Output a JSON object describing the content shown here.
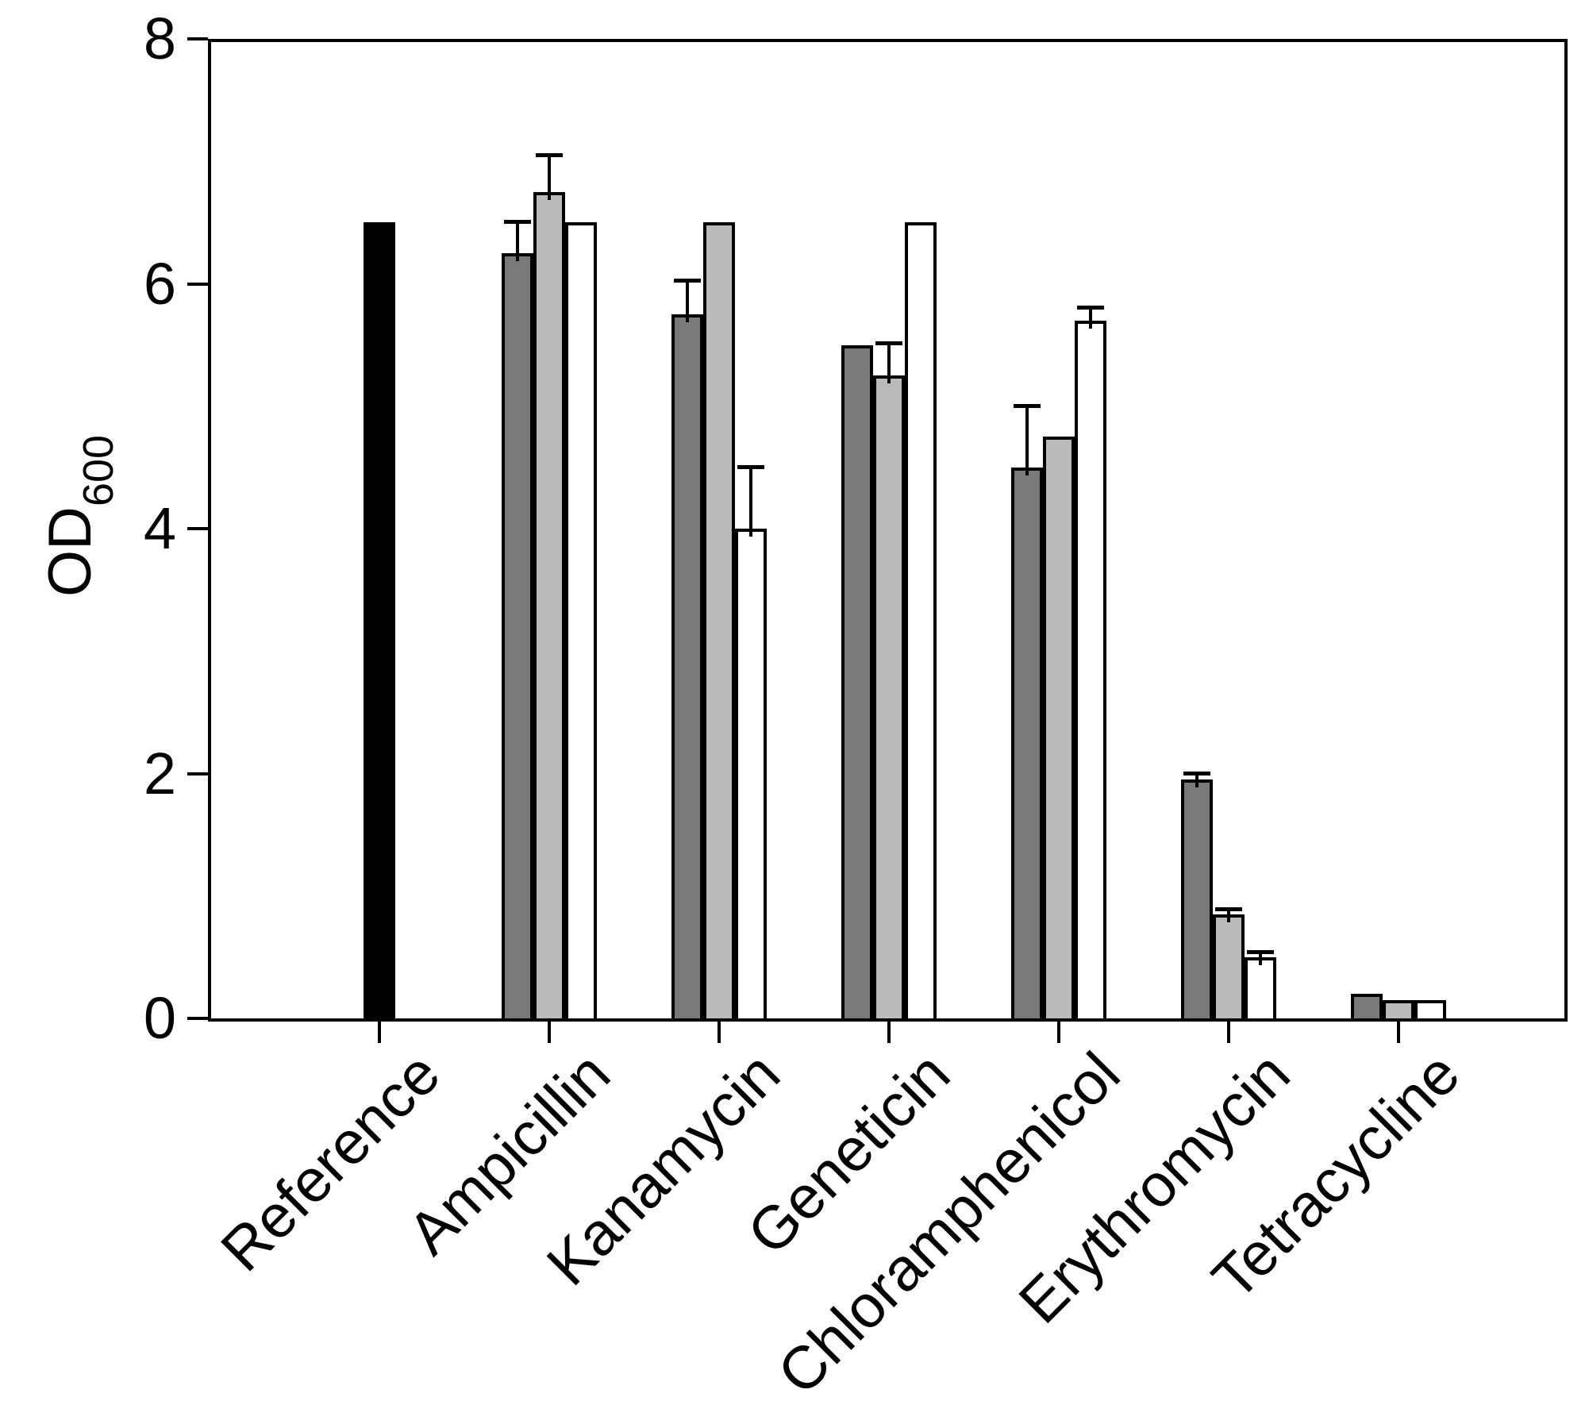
{
  "chart_data": {
    "type": "bar",
    "title": "",
    "ylabel": "OD",
    "ylabel_sub": "600",
    "xlabel": "",
    "ylim": [
      0,
      8
    ],
    "yticks": [
      0,
      2,
      4,
      6,
      8
    ],
    "ytick_labels": [
      "0",
      "2",
      "4",
      "6",
      "8"
    ],
    "grid": false,
    "legend": "none",
    "frame": "full-box",
    "categories": [
      "Reference",
      "Ampicillin",
      "Kanamycin",
      "Geneticin",
      "Chloramphenicol",
      "Erythromycin",
      "Tetracycline"
    ],
    "palette": {
      "black": "#000000",
      "darkgray": "#7a7a7a",
      "lightgray": "#bababa",
      "white": "#ffffff"
    },
    "groups": [
      {
        "label": "Reference",
        "bars": [
          {
            "color": "black",
            "value": 6.5,
            "error": 0
          }
        ]
      },
      {
        "label": "Ampicillin",
        "bars": [
          {
            "color": "darkgray",
            "value": 6.25,
            "error": 0.25
          },
          {
            "color": "lightgray",
            "value": 6.75,
            "error": 0.3
          },
          {
            "color": "white",
            "value": 6.5,
            "error": 0
          }
        ]
      },
      {
        "label": "Kanamycin",
        "bars": [
          {
            "color": "darkgray",
            "value": 5.75,
            "error": 0.27
          },
          {
            "color": "lightgray",
            "value": 6.5,
            "error": 0
          },
          {
            "color": "white",
            "value": 4.0,
            "error": 0.5
          }
        ]
      },
      {
        "label": "Geneticin",
        "bars": [
          {
            "color": "darkgray",
            "value": 5.5,
            "error": 0
          },
          {
            "color": "lightgray",
            "value": 5.25,
            "error": 0.26
          },
          {
            "color": "white",
            "value": 6.5,
            "error": 0
          }
        ]
      },
      {
        "label": "Chloramphenicol",
        "bars": [
          {
            "color": "darkgray",
            "value": 4.5,
            "error": 0.5
          },
          {
            "color": "lightgray",
            "value": 4.75,
            "error": 0
          },
          {
            "color": "white",
            "value": 5.7,
            "error": 0.1
          }
        ]
      },
      {
        "label": "Erythromycin",
        "bars": [
          {
            "color": "darkgray",
            "value": 1.95,
            "error": 0.05
          },
          {
            "color": "lightgray",
            "value": 0.85,
            "error": 0.04
          },
          {
            "color": "white",
            "value": 0.5,
            "error": 0.04
          }
        ]
      },
      {
        "label": "Tetracycline",
        "bars": [
          {
            "color": "darkgray",
            "value": 0.2,
            "error": 0
          },
          {
            "color": "lightgray",
            "value": 0.15,
            "error": 0
          },
          {
            "color": "white",
            "value": 0.15,
            "error": 0
          }
        ]
      }
    ]
  }
}
